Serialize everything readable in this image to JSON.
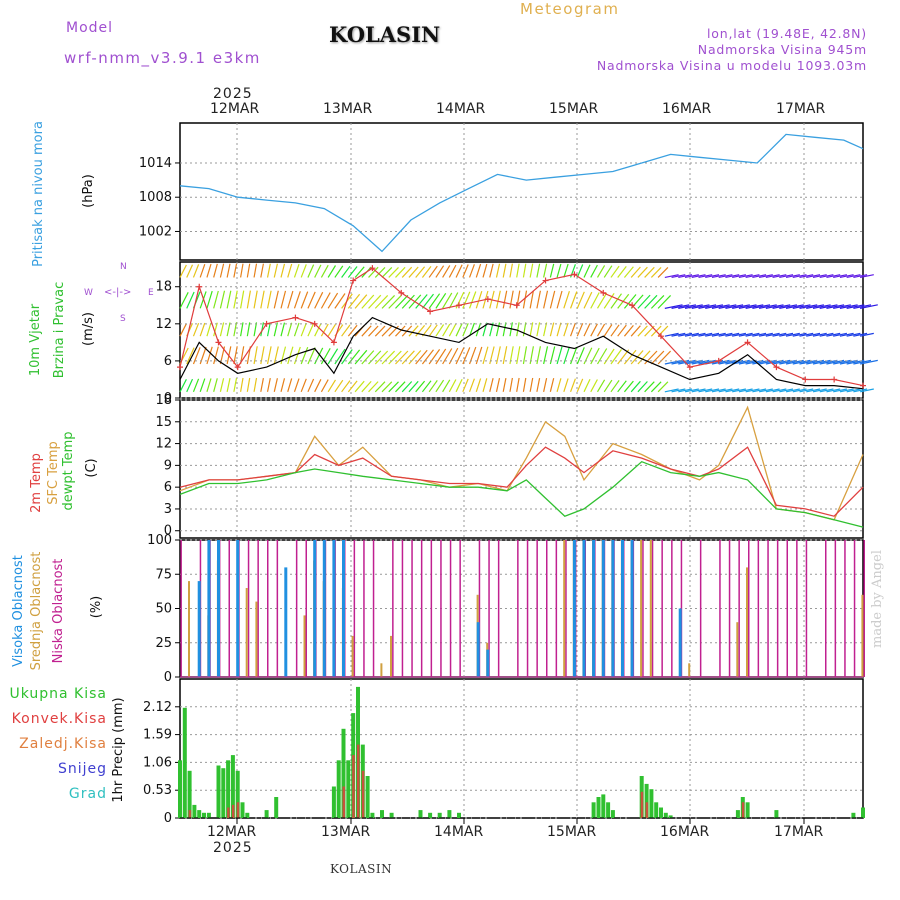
{
  "header": {
    "model_label": "Model",
    "model_name": "wrf-nmm_v3.9.1  e3km",
    "station": "KOLASIN",
    "product": "Meteogram",
    "lonlat": "lon,lat (19.48E, 42.8N)",
    "elevation": "Nadmorska Visina 945m",
    "model_elevation": "Nadmorska Visina u modelu 1093.03m"
  },
  "footer": {
    "station": "KOLASIN",
    "watermark": "made by Angel"
  },
  "colors": {
    "pressure": "#3aa0e0",
    "wind_speed": "#000000",
    "gust": "#e03c3c",
    "temp2m": "#e04040",
    "sfc_temp": "#d8a040",
    "dewpoint": "#30c030",
    "cloud_high": "#2090e0",
    "cloud_mid": "#d0a040",
    "cloud_low": "#c02090",
    "precip_total": "#30c030",
    "precip_conv": "#e04040",
    "precip_frozen": "#e08040",
    "precip_snow": "#4040d0",
    "precip_graupel": "#30c0c0"
  },
  "chart_data": [
    {
      "id": "pressure",
      "type": "line",
      "title": "Pritisak na nivou mora",
      "ylabel": "(hPa)",
      "ylim": [
        997,
        1021
      ],
      "yticks": [
        "1002",
        "1008",
        "1014"
      ],
      "x_dates_top_year": "2025",
      "x_dates": [
        "12MAR",
        "13MAR",
        "14MAR",
        "15MAR",
        "16MAR",
        "17MAR"
      ],
      "series": [
        {
          "name": "MSLP",
          "x": [
            0,
            6,
            12,
            18,
            24,
            30,
            36,
            42,
            48,
            54,
            60,
            66,
            72,
            78,
            84,
            90,
            96,
            102,
            108,
            114,
            120,
            126,
            132,
            138,
            142
          ],
          "values": [
            1010,
            1009.5,
            1008,
            1007.5,
            1007,
            1006,
            1003,
            998.5,
            1004,
            1007,
            1009.5,
            1012,
            1011,
            1011.5,
            1012,
            1012.5,
            1014,
            1015.5,
            1015,
            1014.5,
            1014,
            1019,
            1018.5,
            1018,
            1016.5
          ]
        }
      ]
    },
    {
      "id": "wind",
      "type": "line",
      "title": "10m Vjetar",
      "title2": "Brzina i Pravac",
      "ylabel": "(m/s)",
      "ylim": [
        0,
        22
      ],
      "yticks": [
        "0",
        "6",
        "12",
        "18"
      ],
      "compass": {
        "n": "N",
        "s": "S",
        "w": "W",
        "e": "E"
      },
      "series": [
        {
          "name": "speed",
          "x": [
            0,
            4,
            8,
            12,
            18,
            24,
            28,
            32,
            36,
            40,
            46,
            52,
            58,
            64,
            70,
            76,
            82,
            88,
            94,
            100,
            106,
            112,
            118,
            124,
            130,
            136,
            142
          ],
          "values": [
            3,
            9,
            6,
            4,
            5,
            7,
            8,
            4,
            10,
            13,
            11,
            10,
            9,
            12,
            11,
            9,
            8,
            10,
            7,
            5,
            3,
            4,
            7,
            3,
            2,
            2,
            1.5
          ]
        },
        {
          "name": "gust",
          "x": [
            0,
            4,
            8,
            12,
            18,
            24,
            28,
            32,
            36,
            40,
            46,
            52,
            58,
            64,
            70,
            76,
            82,
            88,
            94,
            100,
            106,
            112,
            118,
            124,
            130,
            136,
            142
          ],
          "values": [
            5,
            18,
            9,
            5,
            12,
            13,
            12,
            9,
            19,
            21,
            17,
            14,
            15,
            16,
            15,
            19,
            20,
            17,
            15,
            10,
            5,
            6,
            9,
            5,
            3,
            3,
            2
          ]
        }
      ]
    },
    {
      "id": "temperature",
      "type": "line",
      "title_2m": "2m Temp",
      "title_sfc": "SFC Temp",
      "title_dew": "dewpt Temp",
      "ylabel": "(C)",
      "ylim": [
        -1,
        18
      ],
      "yticks": [
        "0",
        "3",
        "6",
        "9",
        "12",
        "15",
        "18"
      ],
      "series": [
        {
          "name": "2m Temp",
          "x": [
            0,
            6,
            12,
            18,
            24,
            28,
            33,
            38,
            44,
            50,
            56,
            62,
            68,
            72,
            76,
            80,
            84,
            90,
            96,
            102,
            108,
            112,
            118,
            124,
            130,
            136,
            142
          ],
          "values": [
            6,
            7,
            7,
            7.5,
            8,
            10.5,
            9,
            10,
            7.5,
            7,
            6.5,
            6.5,
            6,
            9,
            11.5,
            10,
            8,
            11,
            10,
            8.5,
            7.5,
            8.5,
            11.5,
            3.5,
            3,
            2,
            6
          ]
        },
        {
          "name": "SFC Temp",
          "x": [
            0,
            6,
            12,
            18,
            24,
            28,
            33,
            38,
            44,
            50,
            56,
            62,
            68,
            72,
            76,
            80,
            84,
            90,
            96,
            102,
            108,
            112,
            118,
            124,
            130,
            136,
            142
          ],
          "values": [
            5.5,
            7,
            7,
            7.5,
            8,
            13,
            9,
            11.5,
            7.5,
            7,
            6,
            6.5,
            5.5,
            10,
            15,
            13,
            7,
            12,
            10.5,
            8.5,
            7,
            9,
            17,
            3,
            2.5,
            1.5,
            10.5
          ]
        },
        {
          "name": "dewpt Temp",
          "x": [
            0,
            6,
            12,
            18,
            24,
            28,
            33,
            38,
            44,
            50,
            56,
            62,
            68,
            72,
            76,
            80,
            84,
            90,
            96,
            102,
            108,
            112,
            118,
            124,
            130,
            136,
            142
          ],
          "values": [
            5,
            6.5,
            6.5,
            7,
            8,
            8.5,
            8,
            7.5,
            7,
            6.5,
            6,
            6,
            5.5,
            7,
            4.5,
            2,
            3,
            6,
            9.5,
            8,
            7.5,
            8,
            7,
            3,
            2.5,
            1.5,
            0.5
          ]
        }
      ]
    },
    {
      "id": "clouds",
      "type": "bar",
      "title_high": "Visoka Oblacnost",
      "title_mid": "Srednja Oblacnost",
      "title_low": "Niska Oblacnost",
      "ylabel": "(%)",
      "ylim": [
        0,
        100
      ],
      "yticks": [
        "0",
        "25",
        "50",
        "75",
        "100"
      ],
      "series": [
        {
          "name": "Niska",
          "x": [
            0,
            2,
            4,
            6,
            8,
            10,
            12,
            14,
            16,
            18,
            20,
            22,
            24,
            26,
            28,
            30,
            32,
            34,
            36,
            38,
            40,
            42,
            44,
            46,
            48,
            50,
            52,
            54,
            56,
            58,
            60,
            62,
            64,
            66,
            68,
            70,
            72,
            74,
            76,
            78,
            80,
            82,
            84,
            86,
            88,
            90,
            92,
            94,
            96,
            98,
            100,
            102,
            104,
            106,
            108,
            110,
            112,
            114,
            116,
            118,
            120,
            122,
            124,
            126,
            128,
            130,
            132,
            134,
            136,
            138,
            140,
            142
          ],
          "values": [
            100,
            0,
            100,
            100,
            100,
            100,
            100,
            100,
            100,
            100,
            100,
            0,
            100,
            100,
            100,
            100,
            100,
            100,
            100,
            100,
            100,
            0,
            100,
            100,
            100,
            100,
            100,
            100,
            100,
            100,
            0,
            100,
            100,
            100,
            0,
            100,
            100,
            100,
            100,
            100,
            100,
            100,
            100,
            100,
            100,
            100,
            100,
            100,
            100,
            100,
            100,
            100,
            100,
            0,
            100,
            0,
            100,
            100,
            100,
            100,
            100,
            100,
            100,
            100,
            100,
            100,
            0,
            100,
            100,
            100,
            100,
            100
          ]
        },
        {
          "name": "Srednja",
          "x": [
            2,
            6,
            8,
            14,
            16,
            26,
            28,
            30,
            34,
            36,
            42,
            44,
            62,
            64,
            80,
            82,
            84,
            86,
            88,
            90,
            92,
            94,
            96,
            98,
            106,
            116,
            118,
            142
          ],
          "values": [
            70,
            45,
            85,
            65,
            55,
            45,
            85,
            70,
            65,
            30,
            10,
            30,
            60,
            25,
            100,
            100,
            100,
            100,
            100,
            100,
            100,
            100,
            100,
            100,
            10,
            40,
            80,
            60
          ]
        },
        {
          "name": "Visoka",
          "x": [
            4,
            6,
            8,
            12,
            22,
            28,
            30,
            32,
            34,
            62,
            64,
            82,
            84,
            86,
            88,
            90,
            92,
            94,
            104
          ],
          "values": [
            70,
            100,
            100,
            100,
            80,
            100,
            100,
            100,
            100,
            40,
            20,
            100,
            100,
            100,
            100,
            100,
            100,
            100,
            50
          ]
        }
      ]
    },
    {
      "id": "precip",
      "type": "bar",
      "ylabel": "1hr Precip (mm)",
      "legend": [
        "Ukupna Kisa",
        "Konvek.Kisa",
        "Zaledj.Kisa",
        "Snijeg",
        "Grad"
      ],
      "ylim": [
        0,
        2.65
      ],
      "yticks": [
        "0",
        "0.53",
        "1.06",
        "1.59",
        "2.12"
      ],
      "x_dates": [
        "12MAR",
        "13MAR",
        "14MAR",
        "15MAR",
        "16MAR",
        "17MAR"
      ],
      "x_dates_bottom_year": "2025",
      "series": [
        {
          "name": "Ukupna Kisa",
          "x": [
            0,
            1,
            2,
            3,
            4,
            5,
            6,
            8,
            9,
            10,
            11,
            12,
            13,
            14,
            18,
            20,
            32,
            33,
            34,
            35,
            36,
            37,
            38,
            39,
            40,
            42,
            44,
            50,
            52,
            54,
            56,
            58,
            86,
            87,
            88,
            89,
            90,
            96,
            97,
            98,
            99,
            100,
            101,
            102,
            116,
            117,
            118,
            124,
            140,
            142
          ],
          "values": [
            1.1,
            2.1,
            0.9,
            0.25,
            0.15,
            0.1,
            0.1,
            1.0,
            0.95,
            1.1,
            1.2,
            0.9,
            0.3,
            0.1,
            0.15,
            0.4,
            0.6,
            1.1,
            1.7,
            1.1,
            2.0,
            2.5,
            1.4,
            0.8,
            0.1,
            0.15,
            0.1,
            0.15,
            0.1,
            0.1,
            0.15,
            0.1,
            0.3,
            0.4,
            0.45,
            0.3,
            0.15,
            0.8,
            0.65,
            0.55,
            0.3,
            0.2,
            0.1,
            0.05,
            0.15,
            0.4,
            0.3,
            0.15,
            0.1,
            0.2
          ]
        },
        {
          "name": "Konvek.Kisa",
          "x": [
            2,
            10,
            11,
            12,
            34,
            36,
            37,
            38,
            96,
            97,
            117
          ],
          "values": [
            0.15,
            0.2,
            0.25,
            0.3,
            0.6,
            1.2,
            1.4,
            0.9,
            0.5,
            0.3,
            0.3
          ]
        }
      ]
    }
  ]
}
